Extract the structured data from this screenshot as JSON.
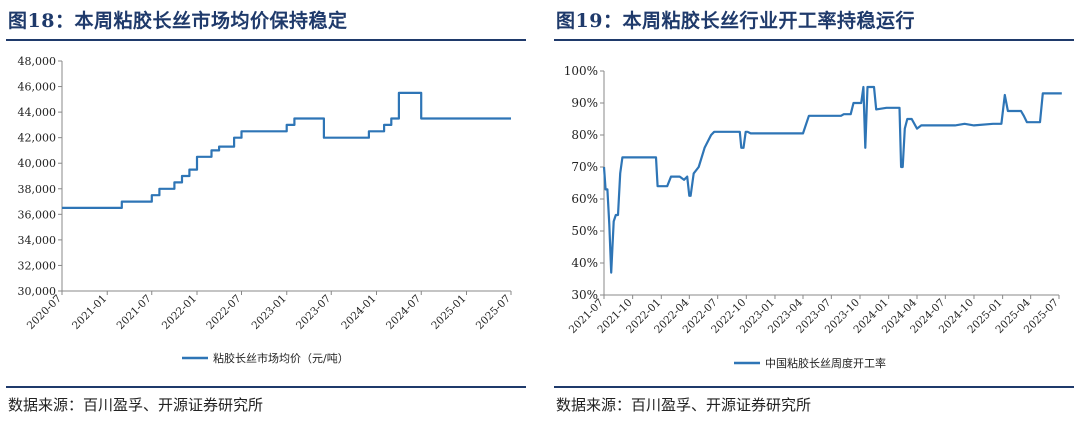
{
  "left": {
    "title": "图18：本周粘胶长丝市场均价保持稳定",
    "source": "数据来源：百川盈孚、开源证券研究所",
    "chart_data": {
      "type": "line",
      "title": "",
      "xlabel": "",
      "ylabel": "",
      "ylim": [
        30000,
        48000
      ],
      "xlim": [
        "2020-07",
        "2025-07"
      ],
      "yticks": [
        "48,000",
        "46,000",
        "44,000",
        "42,000",
        "40,000",
        "38,000",
        "36,000",
        "34,000",
        "32,000",
        "30,000"
      ],
      "xticks": [
        "2020-07",
        "2021-01",
        "2021-07",
        "2022-01",
        "2022-07",
        "2023-01",
        "2023-07",
        "2024-01",
        "2024-07",
        "2025-01",
        "2025-07"
      ],
      "grid": false,
      "legend": "bottom",
      "step": true,
      "series": [
        {
          "name": "粘胶长丝市场均价（元/吨）",
          "color": "#2e75b6",
          "x": [
            "2020-07",
            "2021-03",
            "2021-07",
            "2021-08",
            "2021-10",
            "2021-11",
            "2021-12",
            "2022-01",
            "2022-03",
            "2022-04",
            "2022-06",
            "2022-07",
            "2022-08",
            "2023-01",
            "2023-02",
            "2023-06",
            "2023-12",
            "2024-02",
            "2024-03",
            "2024-04",
            "2024-07",
            "2025-07"
          ],
          "values": [
            36500,
            37000,
            37500,
            38000,
            38500,
            39000,
            39500,
            40500,
            41000,
            41300,
            42000,
            42500,
            42500,
            43000,
            43500,
            42000,
            42500,
            43000,
            43500,
            45500,
            43500,
            43500
          ]
        }
      ]
    }
  },
  "right": {
    "title": "图19：本周粘胶长丝行业开工率持稳运行",
    "source": "数据来源：百川盈孚、开源证券研究所",
    "chart_data": {
      "type": "line",
      "title": "",
      "xlabel": "",
      "ylabel": "",
      "ylim": [
        30,
        100
      ],
      "xlim": [
        "2021-07",
        "2025-07"
      ],
      "yticks": [
        "100%",
        "90%",
        "80%",
        "70%",
        "60%",
        "50%",
        "40%",
        "30%"
      ],
      "xticks": [
        "2021-07",
        "2021-10",
        "2022-01",
        "2022-04",
        "2022-07",
        "2022-10",
        "2023-01",
        "2023-04",
        "2023-07",
        "2023-10",
        "2024-01",
        "2024-04",
        "2024-07",
        "2024-10",
        "2025-01",
        "2025-04",
        "2025-07"
      ],
      "grid": false,
      "legend": "bottom",
      "series": [
        {
          "name": "中国粘胶长丝周度开工率",
          "color": "#2e75b6",
          "x": [
            "2021-07-01",
            "2021-07-06",
            "2021-07-12",
            "2021-07-18",
            "2021-07-24",
            "2021-08-01",
            "2021-08-08",
            "2021-08-15",
            "2021-08-22",
            "2021-08-29",
            "2021-09-05",
            "2021-09-12",
            "2021-09-19",
            "2021-10-01",
            "2021-11-01",
            "2021-12-15",
            "2021-12-20",
            "2022-01-20",
            "2022-02-01",
            "2022-03-01",
            "2022-03-15",
            "2022-03-25",
            "2022-04-01",
            "2022-04-05",
            "2022-04-15",
            "2022-05-01",
            "2022-05-20",
            "2022-06-10",
            "2022-06-20",
            "2022-07-10",
            "2022-08-01",
            "2022-09-10",
            "2022-09-15",
            "2022-09-22",
            "2022-09-29",
            "2022-10-05",
            "2022-10-15",
            "2023-04-01",
            "2023-04-20",
            "2023-08-01",
            "2023-08-10",
            "2023-09-01",
            "2023-09-10",
            "2023-10-05",
            "2023-10-12",
            "2023-10-18",
            "2023-10-25",
            "2023-11-01",
            "2023-11-15",
            "2023-11-22",
            "2023-12-25",
            "2024-02-05",
            "2024-02-10",
            "2024-02-15",
            "2024-02-22",
            "2024-03-01",
            "2024-03-15",
            "2024-04-01",
            "2024-04-15",
            "2024-06-01",
            "2024-08-01",
            "2024-09-01",
            "2024-10-01",
            "2024-12-01",
            "2024-12-28",
            "2025-01-08",
            "2025-01-18",
            "2025-03-01",
            "2025-03-10",
            "2025-03-20",
            "2025-04-01",
            "2025-05-01",
            "2025-05-10",
            "2025-05-20",
            "2025-07-10"
          ],
          "values": [
            70,
            63,
            63,
            52,
            37,
            53,
            55,
            55,
            68,
            73,
            73,
            73,
            73,
            73,
            73,
            73,
            64,
            64,
            67,
            67,
            66,
            67,
            61,
            61,
            68,
            70,
            76,
            80,
            81,
            81,
            81,
            81,
            76,
            76,
            81,
            81,
            80.5,
            80.5,
            86,
            86,
            86.5,
            86.5,
            90,
            90,
            95,
            76,
            95,
            95,
            95,
            88,
            88.5,
            88.5,
            70,
            70,
            82,
            85,
            85,
            82,
            83,
            83,
            83,
            83.5,
            83,
            83.5,
            83.5,
            92.5,
            87.5,
            87.5,
            86,
            84,
            84,
            84,
            93,
            93,
            93
          ]
        }
      ]
    }
  }
}
